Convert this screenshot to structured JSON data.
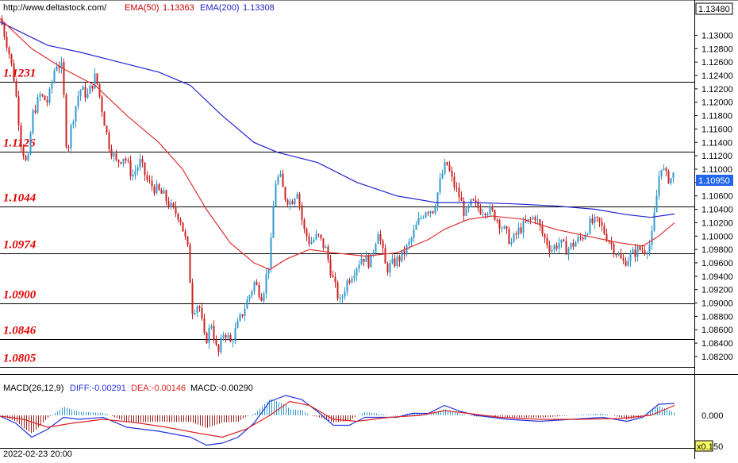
{
  "header": {
    "site": "http://www.deltastock.com/",
    "ema50_label": "EMA(50)",
    "ema50_value": "1.13363",
    "ema200_label": "EMA(200)",
    "ema200_value": "1.13308"
  },
  "colors": {
    "up": "#3399cc",
    "down": "#cc2222",
    "ema50": "#e03030",
    "ema200": "#2222cc",
    "level_text": "#e00000",
    "diff": "#2233dd",
    "dea": "#dd2222"
  },
  "price_axis": {
    "top_value": "1.13480",
    "ticks": [
      "1.13000",
      "1.12800",
      "1.12600",
      "1.12400",
      "1.12200",
      "1.12000",
      "1.11800",
      "1.11600",
      "1.11400",
      "1.11200",
      "1.11000",
      "1.10800",
      "1.10600",
      "1.10400",
      "1.10200",
      "1.10000",
      "1.09800",
      "1.09600",
      "1.09400",
      "1.09200",
      "1.09000",
      "1.08800",
      "1.08600",
      "1.08400",
      "1.08200"
    ],
    "current_price": "1.10950"
  },
  "macd": {
    "label": "MACD(26,12,9)",
    "diff": "DIFF:-0.00291",
    "dea": "DEA:-0.00146",
    "macd": "MACD:-0.00290",
    "zero_label": "0.000",
    "scale_label": "x0.1",
    "scale_suffix": "50"
  },
  "footer": {
    "date": "2022-02-23 20:00"
  },
  "chart_data": {
    "type": "candlestick",
    "y_range": [
      1.0795,
      1.1348
    ],
    "levels": [
      {
        "label": "1.1231",
        "value": 1.1231
      },
      {
        "label": "1.1126",
        "value": 1.1126
      },
      {
        "label": "1.1044",
        "value": 1.1044
      },
      {
        "label": "1.0974",
        "value": 1.0974
      },
      {
        "label": "1.0900",
        "value": 1.09
      },
      {
        "label": "1.0846",
        "value": 1.0846
      },
      {
        "label": "1.0805",
        "value": 1.0805
      }
    ],
    "close_path": [
      [
        0,
        1.1325
      ],
      [
        10,
        1.128
      ],
      [
        18,
        1.123
      ],
      [
        26,
        1.114
      ],
      [
        34,
        1.11
      ],
      [
        40,
        1.118
      ],
      [
        50,
        1.121
      ],
      [
        60,
        1.12
      ],
      [
        70,
        1.126
      ],
      [
        78,
        1.125
      ],
      [
        84,
        1.112
      ],
      [
        90,
        1.117
      ],
      [
        100,
        1.122
      ],
      [
        110,
        1.121
      ],
      [
        120,
        1.124
      ],
      [
        128,
        1.119
      ],
      [
        136,
        1.114
      ],
      [
        146,
        1.111
      ],
      [
        156,
        1.112
      ],
      [
        166,
        1.109
      ],
      [
        176,
        1.111
      ],
      [
        186,
        1.108
      ],
      [
        196,
        1.107
      ],
      [
        206,
        1.106
      ],
      [
        216,
        1.104
      ],
      [
        226,
        1.103
      ],
      [
        236,
        1.098
      ],
      [
        242,
        1.089
      ],
      [
        250,
        1.09
      ],
      [
        258,
        1.084
      ],
      [
        266,
        1.087
      ],
      [
        274,
        1.082
      ],
      [
        282,
        1.086
      ],
      [
        290,
        1.084
      ],
      [
        300,
        1.087
      ],
      [
        310,
        1.09
      ],
      [
        320,
        1.093
      ],
      [
        330,
        1.091
      ],
      [
        340,
        1.097
      ],
      [
        346,
        1.108
      ],
      [
        352,
        1.109
      ],
      [
        358,
        1.106
      ],
      [
        366,
        1.105
      ],
      [
        374,
        1.107
      ],
      [
        382,
        1.101
      ],
      [
        390,
        1.099
      ],
      [
        400,
        1.1
      ],
      [
        410,
        1.098
      ],
      [
        420,
        1.093
      ],
      [
        428,
        1.09
      ],
      [
        436,
        1.093
      ],
      [
        446,
        1.095
      ],
      [
        456,
        1.097
      ],
      [
        466,
        1.096
      ],
      [
        476,
        1.101
      ],
      [
        486,
        1.095
      ],
      [
        496,
        1.096
      ],
      [
        506,
        1.097
      ],
      [
        516,
        1.099
      ],
      [
        526,
        1.102
      ],
      [
        536,
        1.104
      ],
      [
        546,
        1.104
      ],
      [
        556,
        1.109
      ],
      [
        562,
        1.111
      ],
      [
        570,
        1.108
      ],
      [
        578,
        1.106
      ],
      [
        586,
        1.103
      ],
      [
        594,
        1.105
      ],
      [
        604,
        1.104
      ],
      [
        614,
        1.104
      ],
      [
        624,
        1.103
      ],
      [
        634,
        1.101
      ],
      [
        644,
        1.099
      ],
      [
        654,
        1.101
      ],
      [
        664,
        1.102
      ],
      [
        674,
        1.103
      ],
      [
        684,
        1.1
      ],
      [
        694,
        1.098
      ],
      [
        704,
        1.099
      ],
      [
        714,
        1.098
      ],
      [
        724,
        1.099
      ],
      [
        734,
        1.1
      ],
      [
        744,
        1.102
      ],
      [
        754,
        1.102
      ],
      [
        764,
        1.1
      ],
      [
        774,
        1.098
      ],
      [
        784,
        1.096
      ],
      [
        794,
        1.097
      ],
      [
        804,
        1.098
      ],
      [
        812,
        1.098
      ],
      [
        820,
        1.099
      ],
      [
        826,
        1.105
      ],
      [
        832,
        1.111
      ],
      [
        838,
        1.109
      ],
      [
        844,
        1.1085
      ],
      [
        850,
        1.1095
      ]
    ],
    "ema50_path": [
      [
        0,
        1.1325
      ],
      [
        40,
        1.128
      ],
      [
        80,
        1.125
      ],
      [
        120,
        1.1225
      ],
      [
        160,
        1.118
      ],
      [
        200,
        1.114
      ],
      [
        230,
        1.11
      ],
      [
        260,
        1.104
      ],
      [
        290,
        1.099
      ],
      [
        320,
        1.096
      ],
      [
        340,
        1.095
      ],
      [
        360,
        1.0965
      ],
      [
        390,
        1.098
      ],
      [
        420,
        1.0975
      ],
      [
        460,
        1.097
      ],
      [
        500,
        1.0975
      ],
      [
        540,
        1.0995
      ],
      [
        560,
        1.101
      ],
      [
        590,
        1.1025
      ],
      [
        620,
        1.103
      ],
      [
        660,
        1.1025
      ],
      [
        700,
        1.101
      ],
      [
        740,
        1.1
      ],
      [
        780,
        1.099
      ],
      [
        810,
        1.0985
      ],
      [
        830,
        1.1
      ],
      [
        850,
        1.102
      ]
    ],
    "ema200_path": [
      [
        0,
        1.132
      ],
      [
        60,
        1.1285
      ],
      [
        100,
        1.1275
      ],
      [
        150,
        1.126
      ],
      [
        200,
        1.1245
      ],
      [
        240,
        1.1225
      ],
      [
        280,
        1.118
      ],
      [
        320,
        1.114
      ],
      [
        350,
        1.1125
      ],
      [
        400,
        1.111
      ],
      [
        450,
        1.108
      ],
      [
        500,
        1.106
      ],
      [
        550,
        1.105
      ],
      [
        600,
        1.105
      ],
      [
        650,
        1.1048
      ],
      [
        700,
        1.1045
      ],
      [
        750,
        1.104
      ],
      [
        790,
        1.1032
      ],
      [
        820,
        1.1028
      ],
      [
        850,
        1.1033
      ]
    ],
    "macd_diff_path": [
      [
        0,
        -0.02
      ],
      [
        20,
        -0.2
      ],
      [
        40,
        -0.55
      ],
      [
        60,
        -0.35
      ],
      [
        80,
        -0.05
      ],
      [
        100,
        -0.1
      ],
      [
        130,
        -0.05
      ],
      [
        160,
        -0.3
      ],
      [
        200,
        -0.4
      ],
      [
        240,
        -0.55
      ],
      [
        260,
        -0.75
      ],
      [
        280,
        -0.7
      ],
      [
        300,
        -0.55
      ],
      [
        320,
        -0.2
      ],
      [
        340,
        0.35
      ],
      [
        360,
        0.5
      ],
      [
        380,
        0.4
      ],
      [
        400,
        0.1
      ],
      [
        420,
        -0.25
      ],
      [
        440,
        -0.25
      ],
      [
        460,
        -0.05
      ],
      [
        480,
        -0.05
      ],
      [
        500,
        -0.05
      ],
      [
        520,
        0.05
      ],
      [
        540,
        0.05
      ],
      [
        560,
        0.25
      ],
      [
        580,
        0.1
      ],
      [
        600,
        0.0
      ],
      [
        640,
        -0.1
      ],
      [
        680,
        -0.15
      ],
      [
        720,
        -0.1
      ],
      [
        760,
        -0.05
      ],
      [
        790,
        -0.15
      ],
      [
        810,
        -0.05
      ],
      [
        830,
        0.28
      ],
      [
        850,
        0.3
      ]
    ],
    "macd_dea_path": [
      [
        0,
        -0.02
      ],
      [
        30,
        -0.1
      ],
      [
        60,
        -0.3
      ],
      [
        90,
        -0.2
      ],
      [
        130,
        -0.1
      ],
      [
        170,
        -0.18
      ],
      [
        210,
        -0.3
      ],
      [
        250,
        -0.45
      ],
      [
        280,
        -0.55
      ],
      [
        310,
        -0.35
      ],
      [
        340,
        0.0
      ],
      [
        365,
        0.35
      ],
      [
        390,
        0.25
      ],
      [
        420,
        -0.1
      ],
      [
        450,
        -0.15
      ],
      [
        490,
        -0.05
      ],
      [
        530,
        0.0
      ],
      [
        560,
        0.12
      ],
      [
        590,
        0.05
      ],
      [
        630,
        -0.05
      ],
      [
        680,
        -0.1
      ],
      [
        730,
        -0.1
      ],
      [
        780,
        -0.08
      ],
      [
        820,
        0.0
      ],
      [
        850,
        0.25
      ]
    ]
  }
}
